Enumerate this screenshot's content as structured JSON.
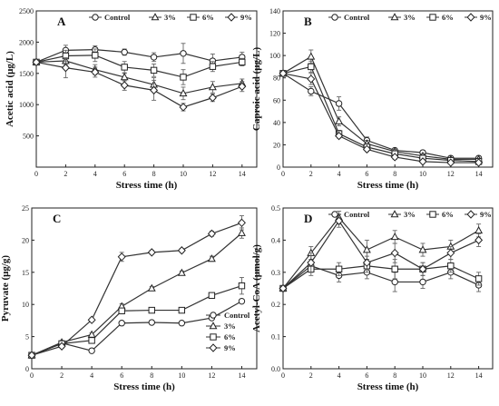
{
  "chart_data": [
    {
      "type": "line",
      "panel": "A",
      "xlabel": "Stress time (h)",
      "ylabel": "Acetic acid (μg/L)",
      "xlim": [
        0,
        15
      ],
      "ylim": [
        0,
        2500
      ],
      "xticks": [
        0,
        2,
        4,
        6,
        8,
        10,
        12,
        14
      ],
      "yticks": [
        {
          "v": 0,
          "t": ""
        },
        {
          "v": 500,
          "t": "500"
        },
        {
          "v": 1000,
          "t": "1000"
        },
        {
          "v": 1500,
          "t": "1500"
        },
        {
          "v": 2000,
          "t": "2000"
        },
        {
          "v": 2500,
          "t": "2500"
        }
      ],
      "legend": {
        "placement": "top-inside",
        "entries": [
          "Control",
          "3%",
          "6%",
          "9%"
        ]
      },
      "series": [
        {
          "name": "Control",
          "marker": "circle",
          "x": [
            0,
            2,
            4,
            6,
            8,
            10,
            12,
            14
          ],
          "y": [
            1680,
            1870,
            1880,
            1840,
            1760,
            1820,
            1700,
            1760
          ],
          "err": [
            40,
            80,
            60,
            50,
            70,
            160,
            110,
            80
          ]
        },
        {
          "name": "3%",
          "marker": "triangle",
          "x": [
            0,
            2,
            4,
            6,
            8,
            10,
            12,
            14
          ],
          "y": [
            1680,
            1700,
            1560,
            1440,
            1320,
            1180,
            1280,
            1340
          ],
          "err": [
            30,
            60,
            80,
            60,
            110,
            100,
            90,
            70
          ]
        },
        {
          "name": "6%",
          "marker": "square",
          "x": [
            0,
            2,
            4,
            6,
            8,
            10,
            12,
            14
          ],
          "y": [
            1680,
            1780,
            1790,
            1600,
            1550,
            1440,
            1610,
            1680
          ],
          "err": [
            30,
            90,
            100,
            90,
            100,
            120,
            80,
            60
          ]
        },
        {
          "name": "9%",
          "marker": "diamond",
          "x": [
            0,
            2,
            4,
            6,
            8,
            10,
            12,
            14
          ],
          "y": [
            1680,
            1590,
            1520,
            1310,
            1230,
            960,
            1110,
            1290
          ],
          "err": [
            30,
            160,
            80,
            80,
            160,
            60,
            60,
            80
          ]
        }
      ]
    },
    {
      "type": "line",
      "panel": "B",
      "xlabel": "Stress time (h)",
      "ylabel": "Caproic acid (μg/L)",
      "xlim": [
        0,
        15
      ],
      "ylim": [
        0,
        140
      ],
      "xticks": [
        0,
        2,
        4,
        6,
        8,
        10,
        12,
        14
      ],
      "yticks": [
        {
          "v": 0,
          "t": "0"
        },
        {
          "v": 20,
          "t": "20"
        },
        {
          "v": 40,
          "t": "40"
        },
        {
          "v": 60,
          "t": "60"
        },
        {
          "v": 80,
          "t": "80"
        },
        {
          "v": 100,
          "t": "100"
        },
        {
          "v": 120,
          "t": "120"
        },
        {
          "v": 140,
          "t": "140"
        }
      ],
      "legend": {
        "placement": "top-inside",
        "entries": [
          "Control",
          "3%",
          "6%",
          "9%"
        ]
      },
      "series": [
        {
          "name": "Control",
          "marker": "circle",
          "x": [
            0,
            2,
            4,
            6,
            8,
            10,
            12,
            14
          ],
          "y": [
            84,
            68,
            57,
            24,
            15,
            13,
            8,
            8
          ],
          "err": [
            2,
            4,
            6,
            3,
            2,
            2,
            1,
            1
          ]
        },
        {
          "name": "3%",
          "marker": "triangle",
          "x": [
            0,
            2,
            4,
            6,
            8,
            10,
            12,
            14
          ],
          "y": [
            84,
            99,
            41,
            21,
            14,
            10,
            7,
            7
          ],
          "err": [
            2,
            6,
            4,
            3,
            2,
            2,
            1,
            1
          ]
        },
        {
          "name": "6%",
          "marker": "square",
          "x": [
            0,
            2,
            4,
            6,
            8,
            10,
            12,
            14
          ],
          "y": [
            84,
            90,
            30,
            18,
            12,
            8,
            6,
            5
          ],
          "err": [
            2,
            5,
            3,
            3,
            2,
            2,
            1,
            1
          ]
        },
        {
          "name": "9%",
          "marker": "diamond",
          "x": [
            0,
            2,
            4,
            6,
            8,
            10,
            12,
            14
          ],
          "y": [
            84,
            79,
            28,
            16,
            9,
            5,
            4,
            4
          ],
          "err": [
            2,
            5,
            2,
            2,
            2,
            1,
            1,
            1
          ]
        }
      ]
    },
    {
      "type": "line",
      "panel": "C",
      "xlabel": "Stress time (h)",
      "ylabel": "Pyruvate (μg/g)",
      "xlim": [
        0,
        15
      ],
      "ylim": [
        0,
        25
      ],
      "xticks": [
        0,
        2,
        4,
        6,
        8,
        10,
        12,
        14
      ],
      "yticks": [
        {
          "v": 0,
          "t": "0"
        },
        {
          "v": 5,
          "t": "5"
        },
        {
          "v": 10,
          "t": "10"
        },
        {
          "v": 15,
          "t": "15"
        },
        {
          "v": 20,
          "t": "20"
        },
        {
          "v": 25,
          "t": "25"
        }
      ],
      "legend": {
        "placement": "bottom-right",
        "entries": [
          "Control",
          "3%",
          "6%",
          "9%"
        ]
      },
      "series": [
        {
          "name": "Control",
          "marker": "circle",
          "x": [
            0,
            2,
            4,
            6,
            8,
            10,
            12,
            14
          ],
          "y": [
            2.1,
            4.0,
            2.8,
            7.1,
            7.2,
            7.1,
            7.9,
            10.5
          ],
          "err": [
            0.1,
            0.2,
            0.2,
            0.3,
            0.2,
            0.2,
            0.3,
            0.3
          ]
        },
        {
          "name": "3%",
          "marker": "triangle",
          "x": [
            0,
            2,
            4,
            6,
            8,
            10,
            12,
            14
          ],
          "y": [
            2.1,
            4.1,
            5.3,
            9.7,
            12.5,
            14.9,
            17.1,
            21.1
          ],
          "err": [
            0.1,
            0.2,
            0.3,
            0.4,
            0.3,
            0.3,
            0.4,
            0.8
          ]
        },
        {
          "name": "6%",
          "marker": "square",
          "x": [
            0,
            2,
            4,
            6,
            8,
            10,
            12,
            14
          ],
          "y": [
            2.1,
            3.9,
            4.4,
            9.0,
            9.1,
            9.1,
            11.4,
            12.9
          ],
          "err": [
            0.1,
            0.2,
            0.3,
            0.3,
            0.2,
            0.3,
            0.3,
            1.3
          ]
        },
        {
          "name": "9%",
          "marker": "diamond",
          "x": [
            0,
            2,
            4,
            6,
            8,
            10,
            12,
            14
          ],
          "y": [
            2.1,
            3.5,
            7.6,
            17.4,
            18.1,
            18.4,
            21.0,
            22.7
          ],
          "err": [
            0.1,
            0.3,
            0.3,
            0.7,
            0.3,
            0.3,
            0.4,
            1.1
          ]
        }
      ]
    },
    {
      "type": "line",
      "panel": "D",
      "xlabel": "Stress time (h)",
      "ylabel": "Acetyl-CoA (μmol/g)",
      "xlim": [
        0,
        15
      ],
      "ylim": [
        0,
        0.5
      ],
      "xticks": [
        0,
        2,
        4,
        6,
        8,
        10,
        12,
        14
      ],
      "yticks": [
        {
          "v": 0,
          "t": "0.0"
        },
        {
          "v": 0.1,
          "t": "0.1"
        },
        {
          "v": 0.2,
          "t": "0.2"
        },
        {
          "v": 0.3,
          "t": "0.3"
        },
        {
          "v": 0.4,
          "t": "0.4"
        },
        {
          "v": 0.5,
          "t": "0.5"
        }
      ],
      "legend": {
        "placement": "top-inside",
        "entries": [
          "Control",
          "3%",
          "6%",
          "9%"
        ]
      },
      "series": [
        {
          "name": "Control",
          "marker": "circle",
          "x": [
            0,
            2,
            4,
            6,
            8,
            10,
            12,
            14
          ],
          "y": [
            0.25,
            0.32,
            0.29,
            0.3,
            0.27,
            0.27,
            0.3,
            0.26
          ],
          "err": [
            0.005,
            0.02,
            0.02,
            0.02,
            0.03,
            0.02,
            0.02,
            0.02
          ]
        },
        {
          "name": "3%",
          "marker": "triangle",
          "x": [
            0,
            2,
            4,
            6,
            8,
            10,
            12,
            14
          ],
          "y": [
            0.25,
            0.36,
            0.47,
            0.37,
            0.41,
            0.37,
            0.38,
            0.43
          ],
          "err": [
            0.005,
            0.02,
            0.02,
            0.03,
            0.02,
            0.02,
            0.02,
            0.02
          ]
        },
        {
          "name": "6%",
          "marker": "square",
          "x": [
            0,
            2,
            4,
            6,
            8,
            10,
            12,
            14
          ],
          "y": [
            0.25,
            0.31,
            0.31,
            0.32,
            0.31,
            0.31,
            0.32,
            0.28
          ],
          "err": [
            0.005,
            0.02,
            0.02,
            0.02,
            0.03,
            0.02,
            0.02,
            0.02
          ]
        },
        {
          "name": "9%",
          "marker": "diamond",
          "x": [
            0,
            2,
            4,
            6,
            8,
            10,
            12,
            14
          ],
          "y": [
            0.25,
            0.33,
            0.46,
            0.33,
            0.36,
            0.31,
            0.36,
            0.4
          ],
          "err": [
            0.005,
            0.03,
            0.02,
            0.02,
            0.03,
            0.02,
            0.02,
            0.02
          ]
        }
      ]
    }
  ]
}
